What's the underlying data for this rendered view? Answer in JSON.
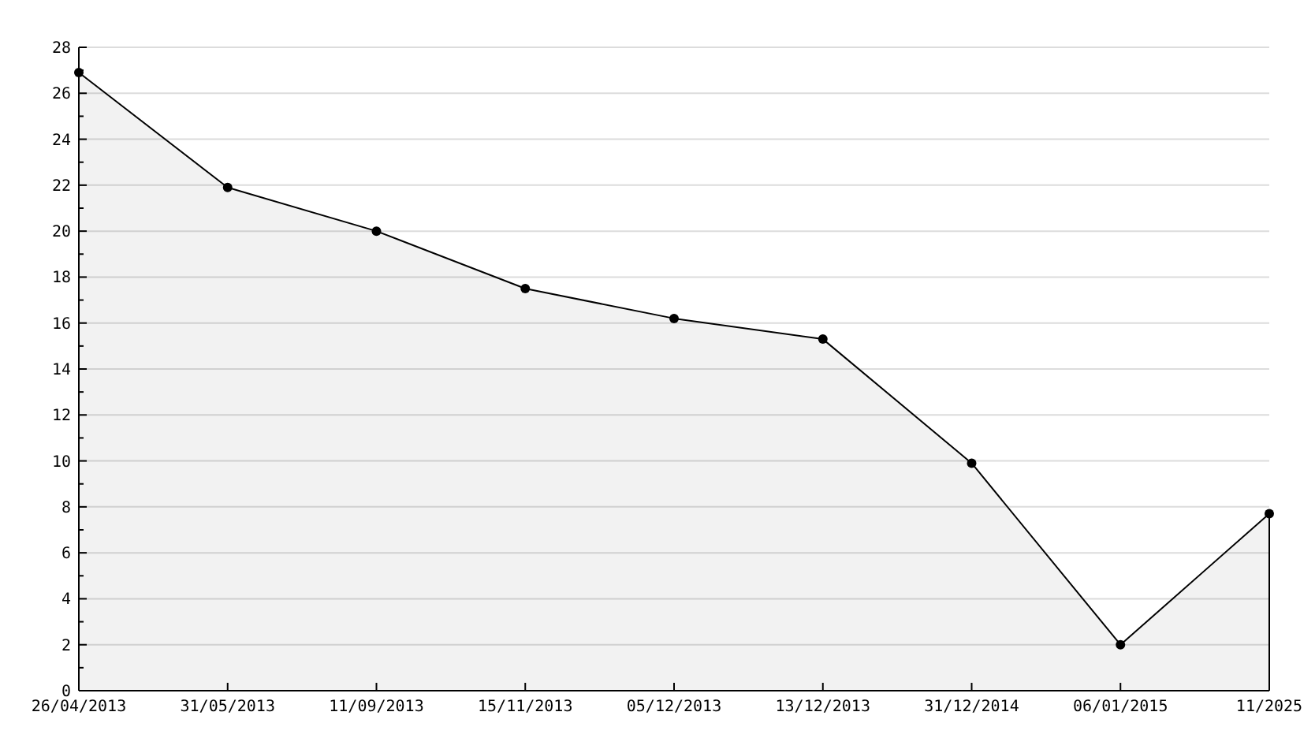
{
  "chart_data": {
    "type": "area",
    "categories": [
      "26/04/2013",
      "31/05/2013",
      "11/09/2013",
      "15/11/2013",
      "05/12/2013",
      "13/12/2013",
      "31/12/2014",
      "06/01/2015",
      "11/2025"
    ],
    "series": [
      {
        "color": "#000000",
        "values": [
          26.9,
          21.9,
          20.0,
          17.5,
          16.2,
          15.3,
          9.9,
          2.0,
          7.7
        ]
      }
    ],
    "ylim": [
      0,
      28
    ],
    "yticks": [
      0,
      {
        "value": 1,
        "label": null
      },
      2,
      {
        "value": 3,
        "label": null
      },
      4,
      {
        "value": 5,
        "label": null
      },
      6,
      {
        "value": 7,
        "label": null
      },
      8,
      {
        "value": 9,
        "label": null
      },
      10,
      {
        "value": 11,
        "label": null
      },
      12,
      {
        "value": 13,
        "label": null
      },
      14,
      {
        "value": 15,
        "label": null
      },
      16,
      {
        "value": 17,
        "label": null
      },
      18,
      {
        "value": 19,
        "label": null
      },
      20,
      {
        "value": 21,
        "label": null
      },
      22,
      {
        "value": 23,
        "label": null
      },
      24,
      {
        "value": 25,
        "label": null
      },
      26,
      {
        "value": 27,
        "label": null
      },
      28
    ],
    "grid": "y",
    "marker": "circle",
    "line_style": "solid"
  }
}
